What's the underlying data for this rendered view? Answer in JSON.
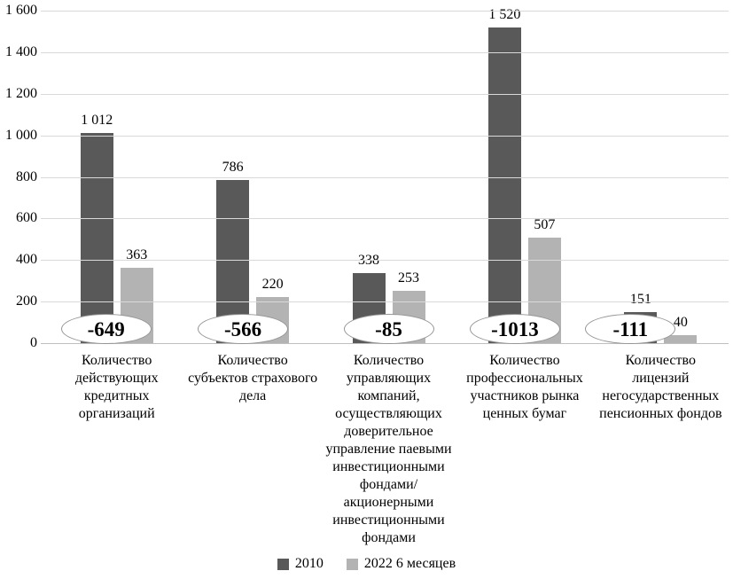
{
  "chart_data": {
    "type": "bar",
    "title": "",
    "categories": [
      "Количество действующих кредитных организаций",
      "Количество субъектов страхового дела",
      "Количество управляющих компаний, осуществляющих доверительное управление паевыми инвестиционными фондами/ акционерными инвестиционными фондами",
      "Количество профессиональных участников рынка ценных бумаг",
      "Количество лицензий негосударственных пенсионных фондов"
    ],
    "series": [
      {
        "name": "2010",
        "color": "#595959",
        "values": [
          1012,
          786,
          338,
          1520,
          151
        ],
        "labels": [
          "1 012",
          "786",
          "338",
          "1 520",
          "151"
        ]
      },
      {
        "name": "2022 6 месяцев",
        "color": "#b3b3b3",
        "values": [
          363,
          220,
          253,
          507,
          40
        ],
        "labels": [
          "363",
          "220",
          "253",
          "507",
          "40"
        ]
      }
    ],
    "annotations": [
      {
        "text": "-649",
        "dx": -12
      },
      {
        "text": "-566",
        "dx": -11
      },
      {
        "text": "-85",
        "dx": 0
      },
      {
        "text": "-1013",
        "dx": -11
      },
      {
        "text": "-111",
        "dx": -34
      }
    ],
    "ylim": [
      0,
      1600
    ],
    "ytick_step": 200,
    "yticks": [
      "0",
      "200",
      "400",
      "600",
      "800",
      "1 000",
      "1 200",
      "1 400",
      "1 600"
    ],
    "grid": true,
    "legend_position": "bottom"
  }
}
